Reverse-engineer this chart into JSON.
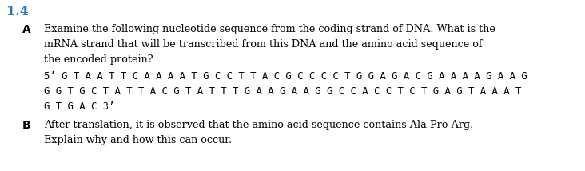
{
  "section_number": "1.4",
  "section_color": "#2e74b5",
  "label_A": "A",
  "label_B": "B",
  "text_color": "#000000",
  "background_color": "#ffffff",
  "line_A1": "Examine the following nucleotide sequence from the coding strand of DNA. What is the",
  "line_A2": "mRNA strand that will be transcribed from this DNA and the amino acid sequence of",
  "line_A3": "the encoded protein?",
  "line_seq1": "5’ G T A A T T C A A A A T G C C T T A C G C C C C T G G A G A C G A A A A G A A G",
  "line_seq2": "G G T G C T A T T A C G T A T T T G A A G A A G G C C A C C T C T G A G T A A A T",
  "line_seq3": "G T G A C 3’",
  "line_B1": "After translation, it is observed that the amino acid sequence contains Ala-Pro-Arg.",
  "line_B2": "Explain why and how this can occur.",
  "fs_section": 11.5,
  "fs_label": 10,
  "fs_text": 9.2,
  "fs_seq": 8.8
}
